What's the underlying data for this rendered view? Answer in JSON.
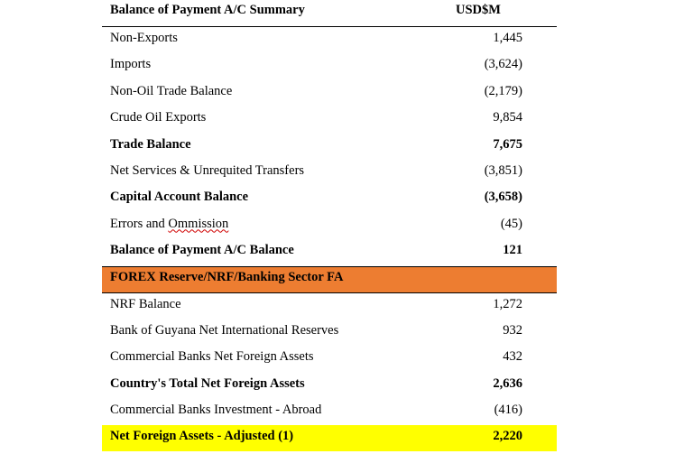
{
  "table": {
    "header": {
      "label": "Balance of Payment A/C Summary",
      "unit": "USD$M"
    },
    "rows_top": [
      {
        "label": "Non-Exports",
        "value": "1,445",
        "bold": false
      },
      {
        "label": "Imports",
        "value": "(3,624)",
        "bold": false
      },
      {
        "label": "Non-Oil Trade Balance",
        "value": "(2,179)",
        "bold": false
      },
      {
        "label": "Crude Oil Exports",
        "value": "9,854",
        "bold": false
      },
      {
        "label": "Trade Balance",
        "value": "7,675",
        "bold": true
      },
      {
        "label": "Net Services & Unrequited Transfers",
        "value": "(3,851)",
        "bold": false
      },
      {
        "label": "Capital Account Balance",
        "value": "(3,658)",
        "bold": true
      },
      {
        "label_prefix": "Errors and ",
        "label_flagged": "Ommission",
        "value": "(45)",
        "bold": false
      },
      {
        "label": "Balance of Payment A/C Balance",
        "value": "121",
        "bold": true
      }
    ],
    "section": {
      "label": "FOREX Reserve/NRF/Banking Sector FA",
      "color": "#ed7d31"
    },
    "rows_bottom": [
      {
        "label": "NRF Balance",
        "value": "1,272",
        "bold": false
      },
      {
        "label": "Bank of Guyana Net International Reserves",
        "value": "932",
        "bold": false
      },
      {
        "label": "Commercial Banks Net Foreign Assets",
        "value": "432",
        "bold": false
      },
      {
        "label": "Country's Total Net Foreign Assets",
        "value": "2,636",
        "bold": true
      },
      {
        "label": "Commercial Banks Investment - Abroad",
        "value": "(416)",
        "bold": false
      }
    ],
    "total": {
      "label": "Net Foreign Assets - Adjusted (1)",
      "value": "2,220",
      "color": "#ffff00"
    }
  }
}
